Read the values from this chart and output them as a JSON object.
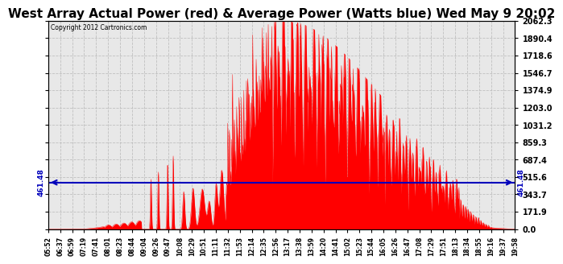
{
  "title": "West Array Actual Power (red) & Average Power (Watts blue) Wed May 9 20:02",
  "copyright": "Copyright 2012 Cartronics.com",
  "ymax": 2062.3,
  "ymin": 0.0,
  "yticks": [
    0.0,
    171.9,
    343.7,
    515.6,
    687.4,
    859.3,
    1031.2,
    1203.0,
    1374.9,
    1546.7,
    1718.6,
    1890.4,
    2062.3
  ],
  "average_line": 461.48,
  "fill_color": "#FF0000",
  "line_color": "#0000BB",
  "background_color": "#E8E8E8",
  "grid_color": "#BBBBBB",
  "title_fontsize": 11,
  "xtick_labels": [
    "05:52",
    "06:37",
    "06:59",
    "07:19",
    "07:41",
    "08:01",
    "08:23",
    "08:44",
    "09:04",
    "09:26",
    "09:47",
    "10:08",
    "10:29",
    "10:51",
    "11:11",
    "11:32",
    "11:53",
    "12:14",
    "12:35",
    "12:56",
    "13:17",
    "13:38",
    "13:59",
    "14:20",
    "14:41",
    "15:02",
    "15:23",
    "15:44",
    "16:05",
    "16:26",
    "16:47",
    "17:08",
    "17:29",
    "17:51",
    "18:13",
    "18:34",
    "18:55",
    "19:16",
    "19:37",
    "19:58"
  ]
}
